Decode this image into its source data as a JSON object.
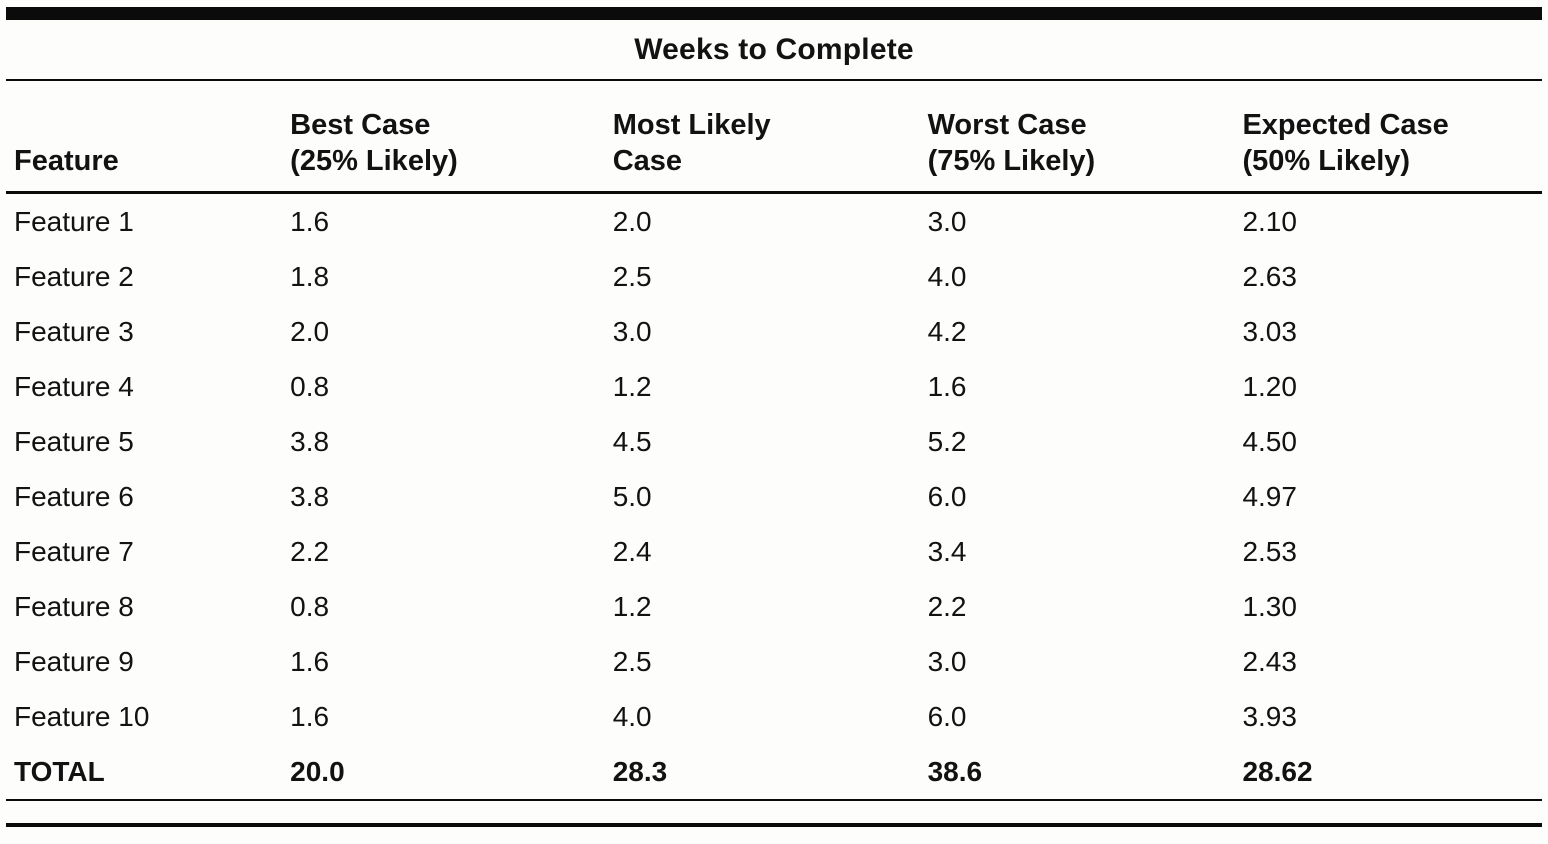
{
  "title": "Weeks to Complete",
  "table": {
    "feature_header": "Feature",
    "columns": [
      {
        "line1": "Best Case",
        "line2": "(25% Likely)"
      },
      {
        "line1": "Most Likely",
        "line2": "Case"
      },
      {
        "line1": "Worst Case",
        "line2": "(75% Likely)"
      },
      {
        "line1": "Expected Case",
        "line2": "(50% Likely)"
      }
    ],
    "rows": [
      {
        "feature": "Feature 1",
        "best": "1.6",
        "likely": "2.0",
        "worst": "3.0",
        "expected": "2.10"
      },
      {
        "feature": "Feature 2",
        "best": "1.8",
        "likely": "2.5",
        "worst": "4.0",
        "expected": "2.63"
      },
      {
        "feature": "Feature 3",
        "best": "2.0",
        "likely": "3.0",
        "worst": "4.2",
        "expected": "3.03"
      },
      {
        "feature": "Feature 4",
        "best": "0.8",
        "likely": "1.2",
        "worst": "1.6",
        "expected": "1.20"
      },
      {
        "feature": "Feature 5",
        "best": "3.8",
        "likely": "4.5",
        "worst": "5.2",
        "expected": "4.50"
      },
      {
        "feature": "Feature 6",
        "best": "3.8",
        "likely": "5.0",
        "worst": "6.0",
        "expected": "4.97"
      },
      {
        "feature": "Feature 7",
        "best": "2.2",
        "likely": "2.4",
        "worst": "3.4",
        "expected": "2.53"
      },
      {
        "feature": "Feature 8",
        "best": "0.8",
        "likely": "1.2",
        "worst": "2.2",
        "expected": "1.30"
      },
      {
        "feature": "Feature 9",
        "best": "1.6",
        "likely": "2.5",
        "worst": "3.0",
        "expected": "2.43"
      },
      {
        "feature": "Feature 10",
        "best": "1.6",
        "likely": "4.0",
        "worst": "6.0",
        "expected": "3.93"
      }
    ],
    "total": {
      "feature": "TOTAL",
      "best": "20.0",
      "likely": "28.3",
      "worst": "38.6",
      "expected": "28.62"
    }
  },
  "colors": {
    "text": "#121212",
    "rule": "#0b0b0b",
    "background": "#fdfdfc"
  }
}
